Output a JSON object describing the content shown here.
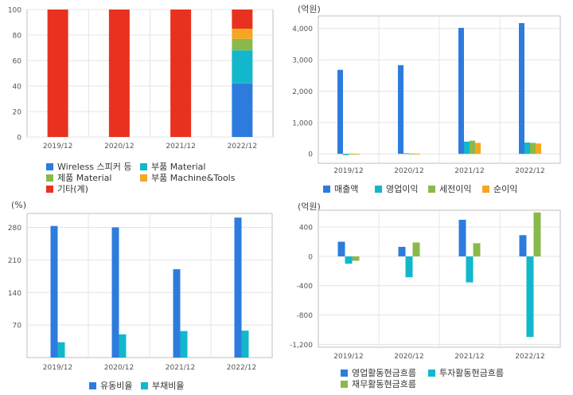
{
  "colors": {
    "blue": "#2d7cdd",
    "cyan": "#12b7cc",
    "green": "#8ab94a",
    "orange": "#f5a623",
    "red": "#e8321f",
    "grid": "#e4e4e4",
    "frame": "#bfbfbf",
    "tick": "#555555"
  },
  "chart_data": [
    {
      "type": "bar",
      "stacked": true,
      "categories": [
        "2019/12",
        "2020/12",
        "2021/12",
        "2022/12"
      ],
      "ylim": [
        0,
        100
      ],
      "yticks": [
        "0",
        "20",
        "40",
        "60",
        "80",
        "100"
      ],
      "series": [
        {
          "name": "Wireless 스피커 등",
          "color": "#2d7cdd",
          "values": [
            0,
            0,
            0,
            42
          ]
        },
        {
          "name": "부품 Material",
          "color": "#12b7cc",
          "values": [
            0,
            0,
            0,
            26
          ]
        },
        {
          "name": "제품 Material",
          "color": "#8ab94a",
          "values": [
            0,
            0,
            0,
            9
          ]
        },
        {
          "name": "부품 Machine&Tools",
          "color": "#f5a623",
          "values": [
            0,
            0,
            0,
            8
          ]
        },
        {
          "name": "기타(계)",
          "color": "#e8321f",
          "values": [
            100,
            100,
            100,
            15
          ]
        }
      ],
      "unit": ""
    },
    {
      "type": "bar",
      "categories": [
        "2019/12",
        "2020/12",
        "2021/12",
        "2022/12"
      ],
      "ylim": [
        -300,
        4400
      ],
      "yticks": [
        "0",
        "1,000",
        "2,000",
        "3,000",
        "4,000"
      ],
      "series": [
        {
          "name": "매출액",
          "color": "#2d7cdd",
          "values": [
            2680,
            2830,
            4020,
            4170
          ]
        },
        {
          "name": "영업이익",
          "color": "#12b7cc",
          "values": [
            -40,
            20,
            390,
            360
          ]
        },
        {
          "name": "세전이익",
          "color": "#8ab94a",
          "values": [
            -20,
            10,
            420,
            350
          ]
        },
        {
          "name": "순이익",
          "color": "#f5a623",
          "values": [
            -10,
            5,
            350,
            330
          ]
        }
      ],
      "unit": "(억원)"
    },
    {
      "type": "bar",
      "categories": [
        "2019/12",
        "2020/12",
        "2021/12",
        "2022/12"
      ],
      "ylim": [
        0,
        310
      ],
      "yticks": [
        "70",
        "140",
        "210",
        "280"
      ],
      "series": [
        {
          "name": "유동비율",
          "color": "#2d7cdd",
          "values": [
            283,
            280,
            190,
            301
          ]
        },
        {
          "name": "부채비율",
          "color": "#12b7cc",
          "values": [
            33,
            50,
            57,
            58
          ]
        }
      ],
      "unit": "(%)"
    },
    {
      "type": "bar",
      "categories": [
        "2019/12",
        "2020/12",
        "2021/12",
        "2022/12"
      ],
      "ylim": [
        -1240,
        630
      ],
      "yticks": [
        "400",
        "0",
        "-400",
        "-800",
        "-1,200"
      ],
      "series": [
        {
          "name": "영업활동현금흐름",
          "color": "#2d7cdd",
          "values": [
            200,
            130,
            500,
            290
          ]
        },
        {
          "name": "투자활동현금흐름",
          "color": "#12b7cc",
          "values": [
            -100,
            -285,
            -355,
            -1100
          ]
        },
        {
          "name": "재무활동현금흐름",
          "color": "#8ab94a",
          "values": [
            -60,
            190,
            180,
            600
          ]
        }
      ],
      "unit": "(억원)"
    }
  ]
}
